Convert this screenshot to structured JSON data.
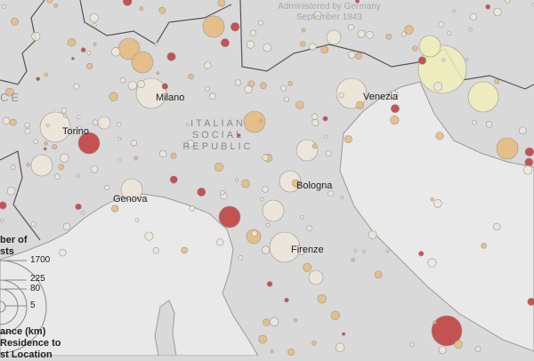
{
  "map": {
    "colors": {
      "land": "#d9d9d9",
      "sea": "#e9e9ea",
      "border": "#666666",
      "near": "#efe6d8",
      "mid": "#e8b87a",
      "far": "#c0393a",
      "far_east": "#eeeeb8"
    },
    "region_labels": {
      "rsi": [
        "ITALIAN",
        "SOCIAL",
        "REPUBLIC"
      ],
      "france_fragment": "CE",
      "german_admin": [
        "Administered by Germany",
        "September 1943"
      ]
    },
    "cities": [
      {
        "name": "Milano"
      },
      {
        "name": "Torino"
      },
      {
        "name": "Venezia"
      },
      {
        "name": "Genova"
      },
      {
        "name": "Bologna"
      },
      {
        "name": "Firenze"
      }
    ]
  },
  "legend": {
    "size_title": [
      "ber of",
      "sts"
    ],
    "size_values": [
      "1700",
      "225",
      "80",
      "5"
    ],
    "color_title_unit": "ance (km)",
    "color_title": [
      "Residence to",
      "st Location"
    ]
  }
}
